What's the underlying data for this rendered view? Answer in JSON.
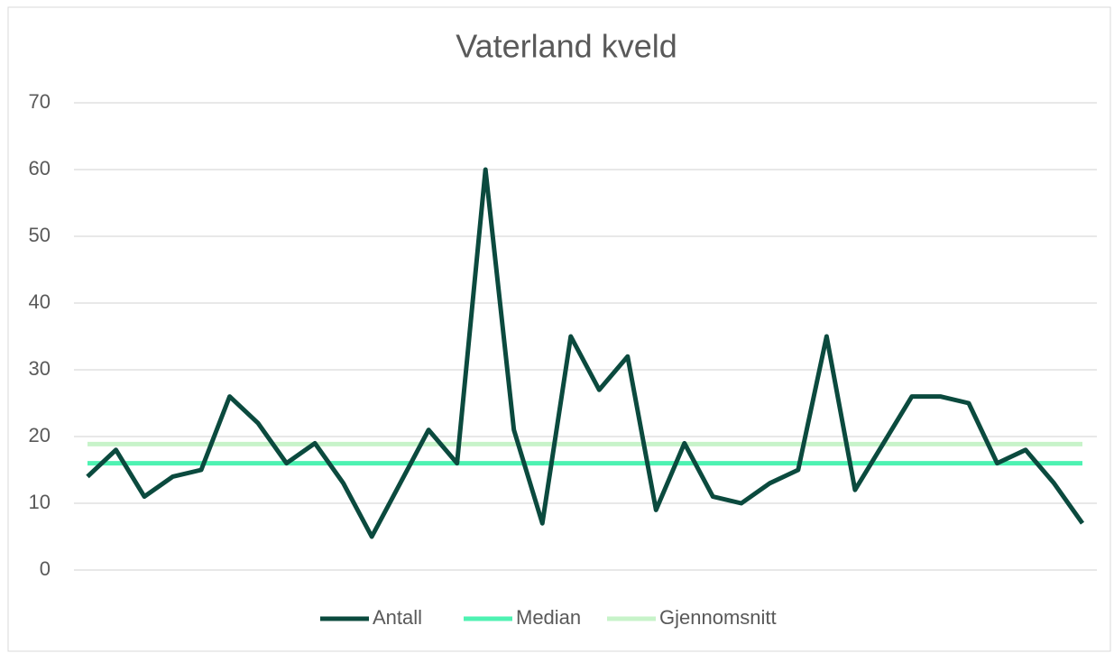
{
  "chart_data": {
    "type": "line",
    "title": "Vaterland kveld",
    "series": [
      {
        "name": "Antall",
        "color": "#0b4a3e",
        "values": [
          14,
          18,
          11,
          14,
          15,
          26,
          22,
          16,
          19,
          13,
          5,
          13,
          21,
          16,
          60,
          21,
          7,
          35,
          27,
          32,
          9,
          19,
          11,
          10,
          13,
          15,
          35,
          12,
          19,
          26,
          26,
          25,
          16,
          18,
          13,
          7
        ]
      },
      {
        "name": "Median",
        "color": "#4ef2b2",
        "values": [
          16,
          16,
          16,
          16,
          16,
          16,
          16,
          16,
          16,
          16,
          16,
          16,
          16,
          16,
          16,
          16,
          16,
          16,
          16,
          16,
          16,
          16,
          16,
          16,
          16,
          16,
          16,
          16,
          16,
          16,
          16,
          16,
          16,
          16,
          16,
          16
        ]
      },
      {
        "name": "Gjennomsnitt",
        "color": "#c7f3c9",
        "values": [
          18.86,
          18.86,
          18.86,
          18.86,
          18.86,
          18.86,
          18.86,
          18.86,
          18.86,
          18.86,
          18.86,
          18.86,
          18.86,
          18.86,
          18.86,
          18.86,
          18.86,
          18.86,
          18.86,
          18.86,
          18.86,
          18.86,
          18.86,
          18.86,
          18.86,
          18.86,
          18.86,
          18.86,
          18.86,
          18.86,
          18.86,
          18.86,
          18.86,
          18.86,
          18.86,
          18.86
        ]
      }
    ],
    "ylim": [
      0,
      70
    ],
    "yticks": [
      0,
      10,
      20,
      30,
      40,
      50,
      60,
      70
    ],
    "grid": true,
    "legend": "bottom"
  }
}
